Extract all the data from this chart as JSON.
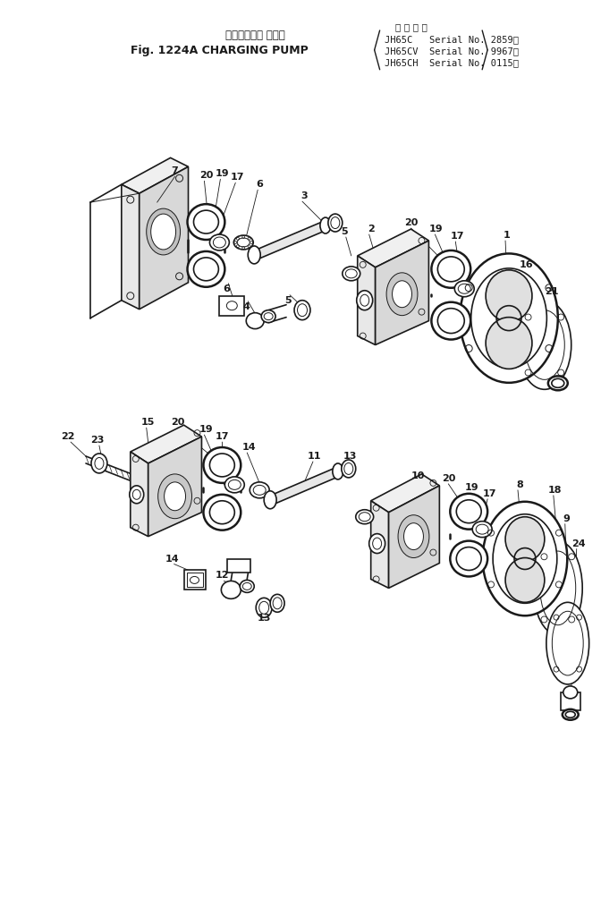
{
  "background_color": "#ffffff",
  "line_color": "#1a1a1a",
  "fig_width": 6.72,
  "fig_height": 10.15,
  "dpi": 100,
  "title_jp": "チャージング ポンプ",
  "title_en": "Fig. 1224A CHARGING PUMP",
  "header_label": "適 用 号 機",
  "model1": "JH65C   Serial No. 2859～",
  "model2": "JH65CV  Serial No. 9967～",
  "model3": "JH65CH  Serial No. 0115～"
}
